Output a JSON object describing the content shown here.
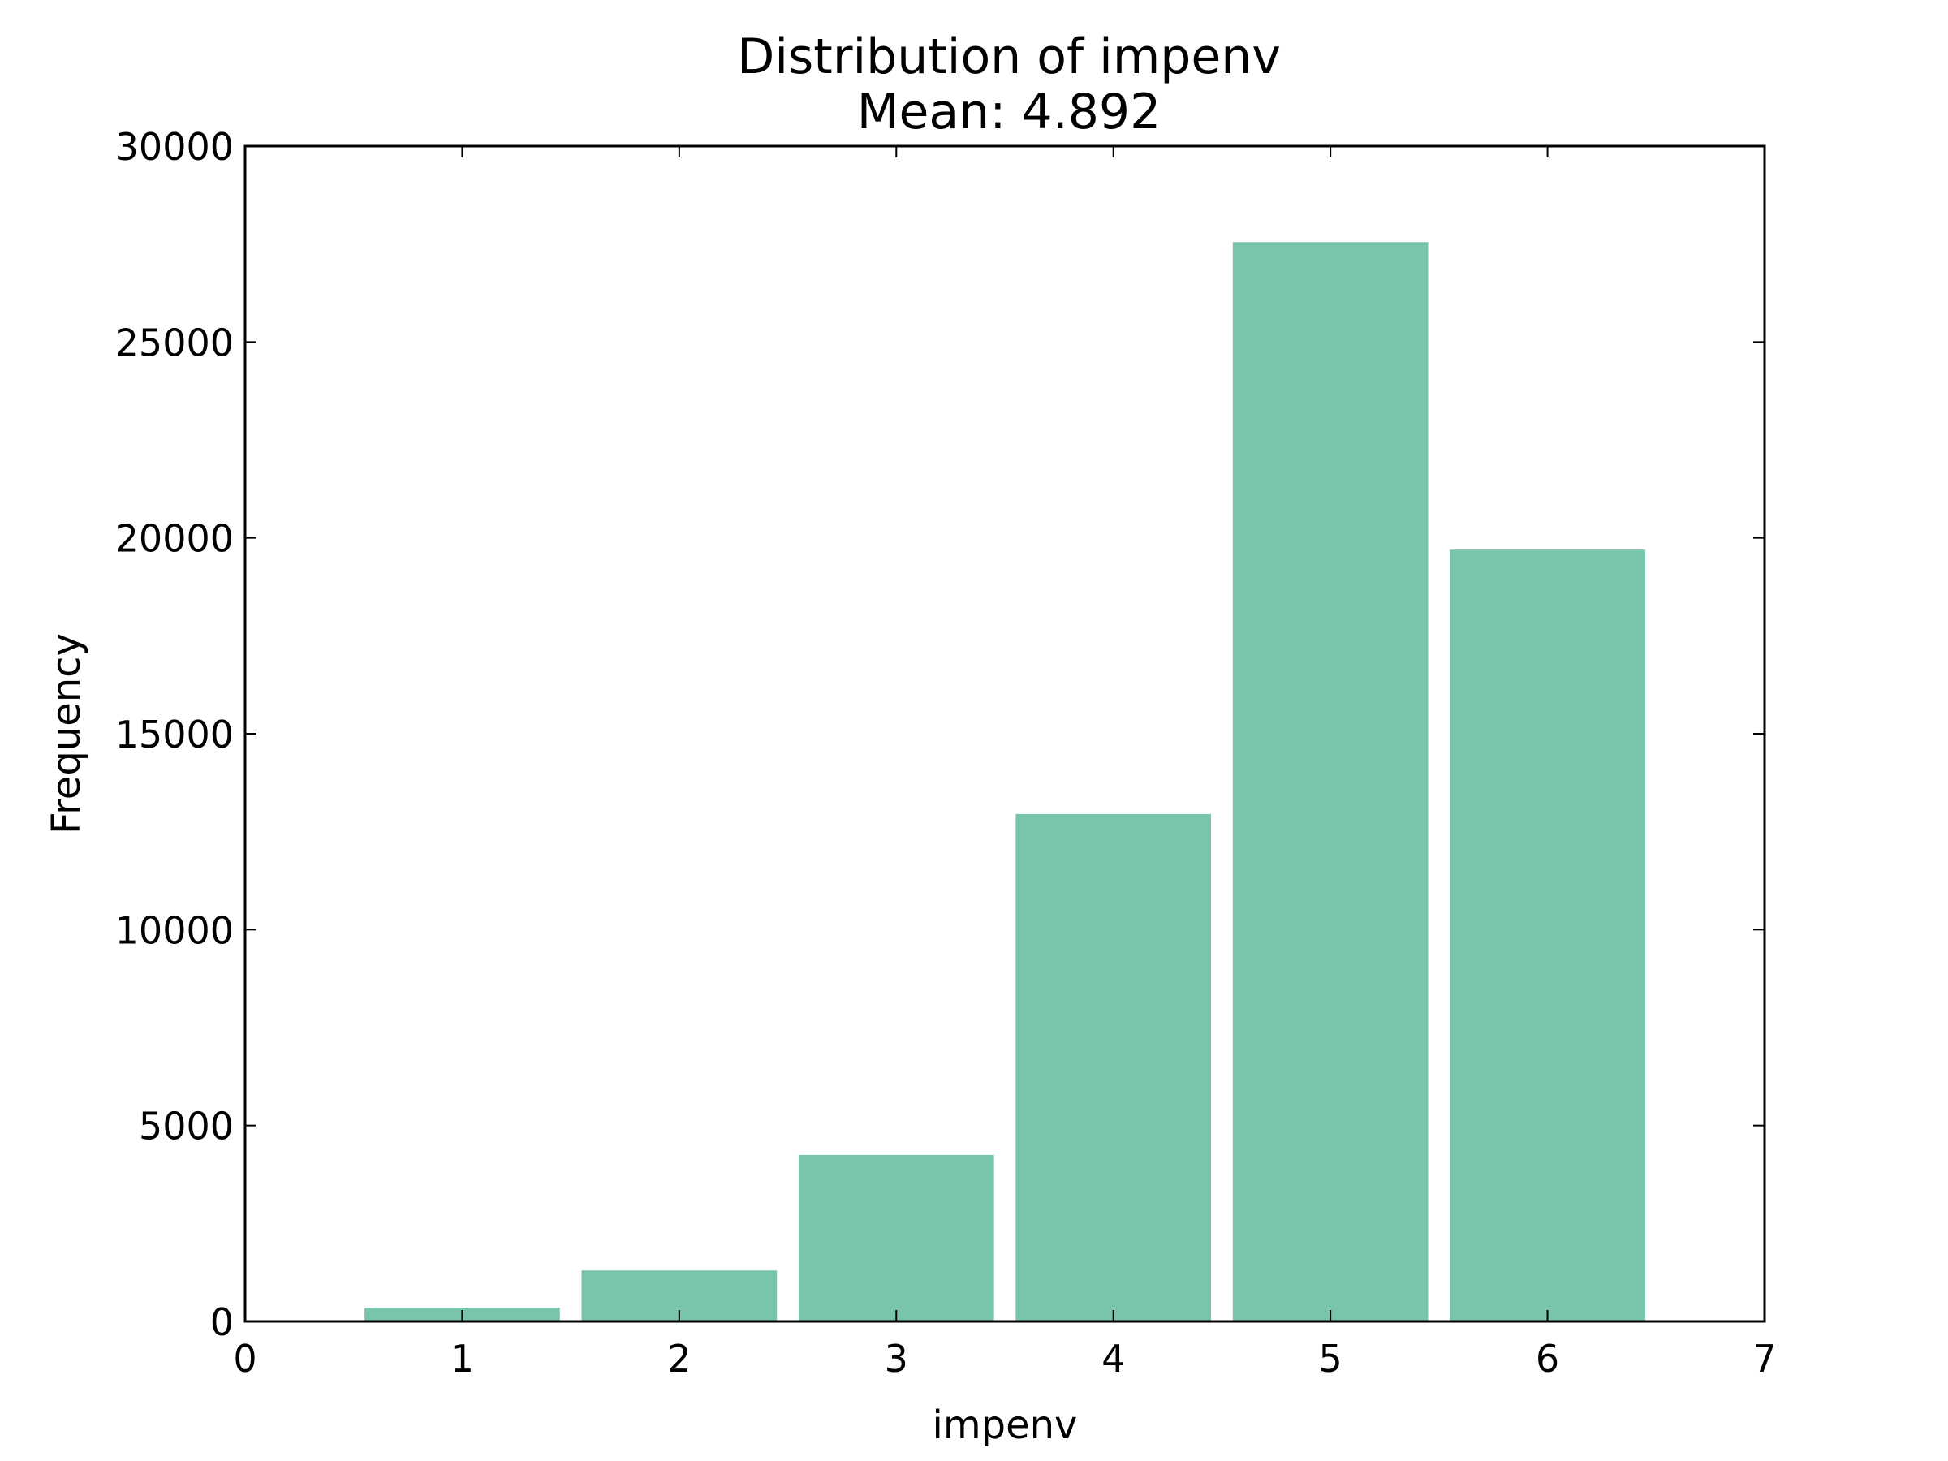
{
  "chart_data": {
    "type": "bar",
    "title": "Distribution of impenv",
    "subtitle": "Mean: 4.892",
    "xlabel": "impenv",
    "ylabel": "Frequency",
    "categories": [
      1,
      2,
      3,
      4,
      5,
      6
    ],
    "values": [
      350,
      1300,
      4250,
      12950,
      27550,
      19700
    ],
    "xlim": [
      0,
      7
    ],
    "ylim": [
      0,
      30000
    ],
    "xticks": [
      "0",
      "1",
      "2",
      "3",
      "4",
      "5",
      "6",
      "7"
    ],
    "yticks": [
      "0",
      "5000",
      "10000",
      "15000",
      "20000",
      "25000",
      "30000"
    ],
    "bar_color": "#78c4ad",
    "grid": false,
    "legend": "none"
  }
}
